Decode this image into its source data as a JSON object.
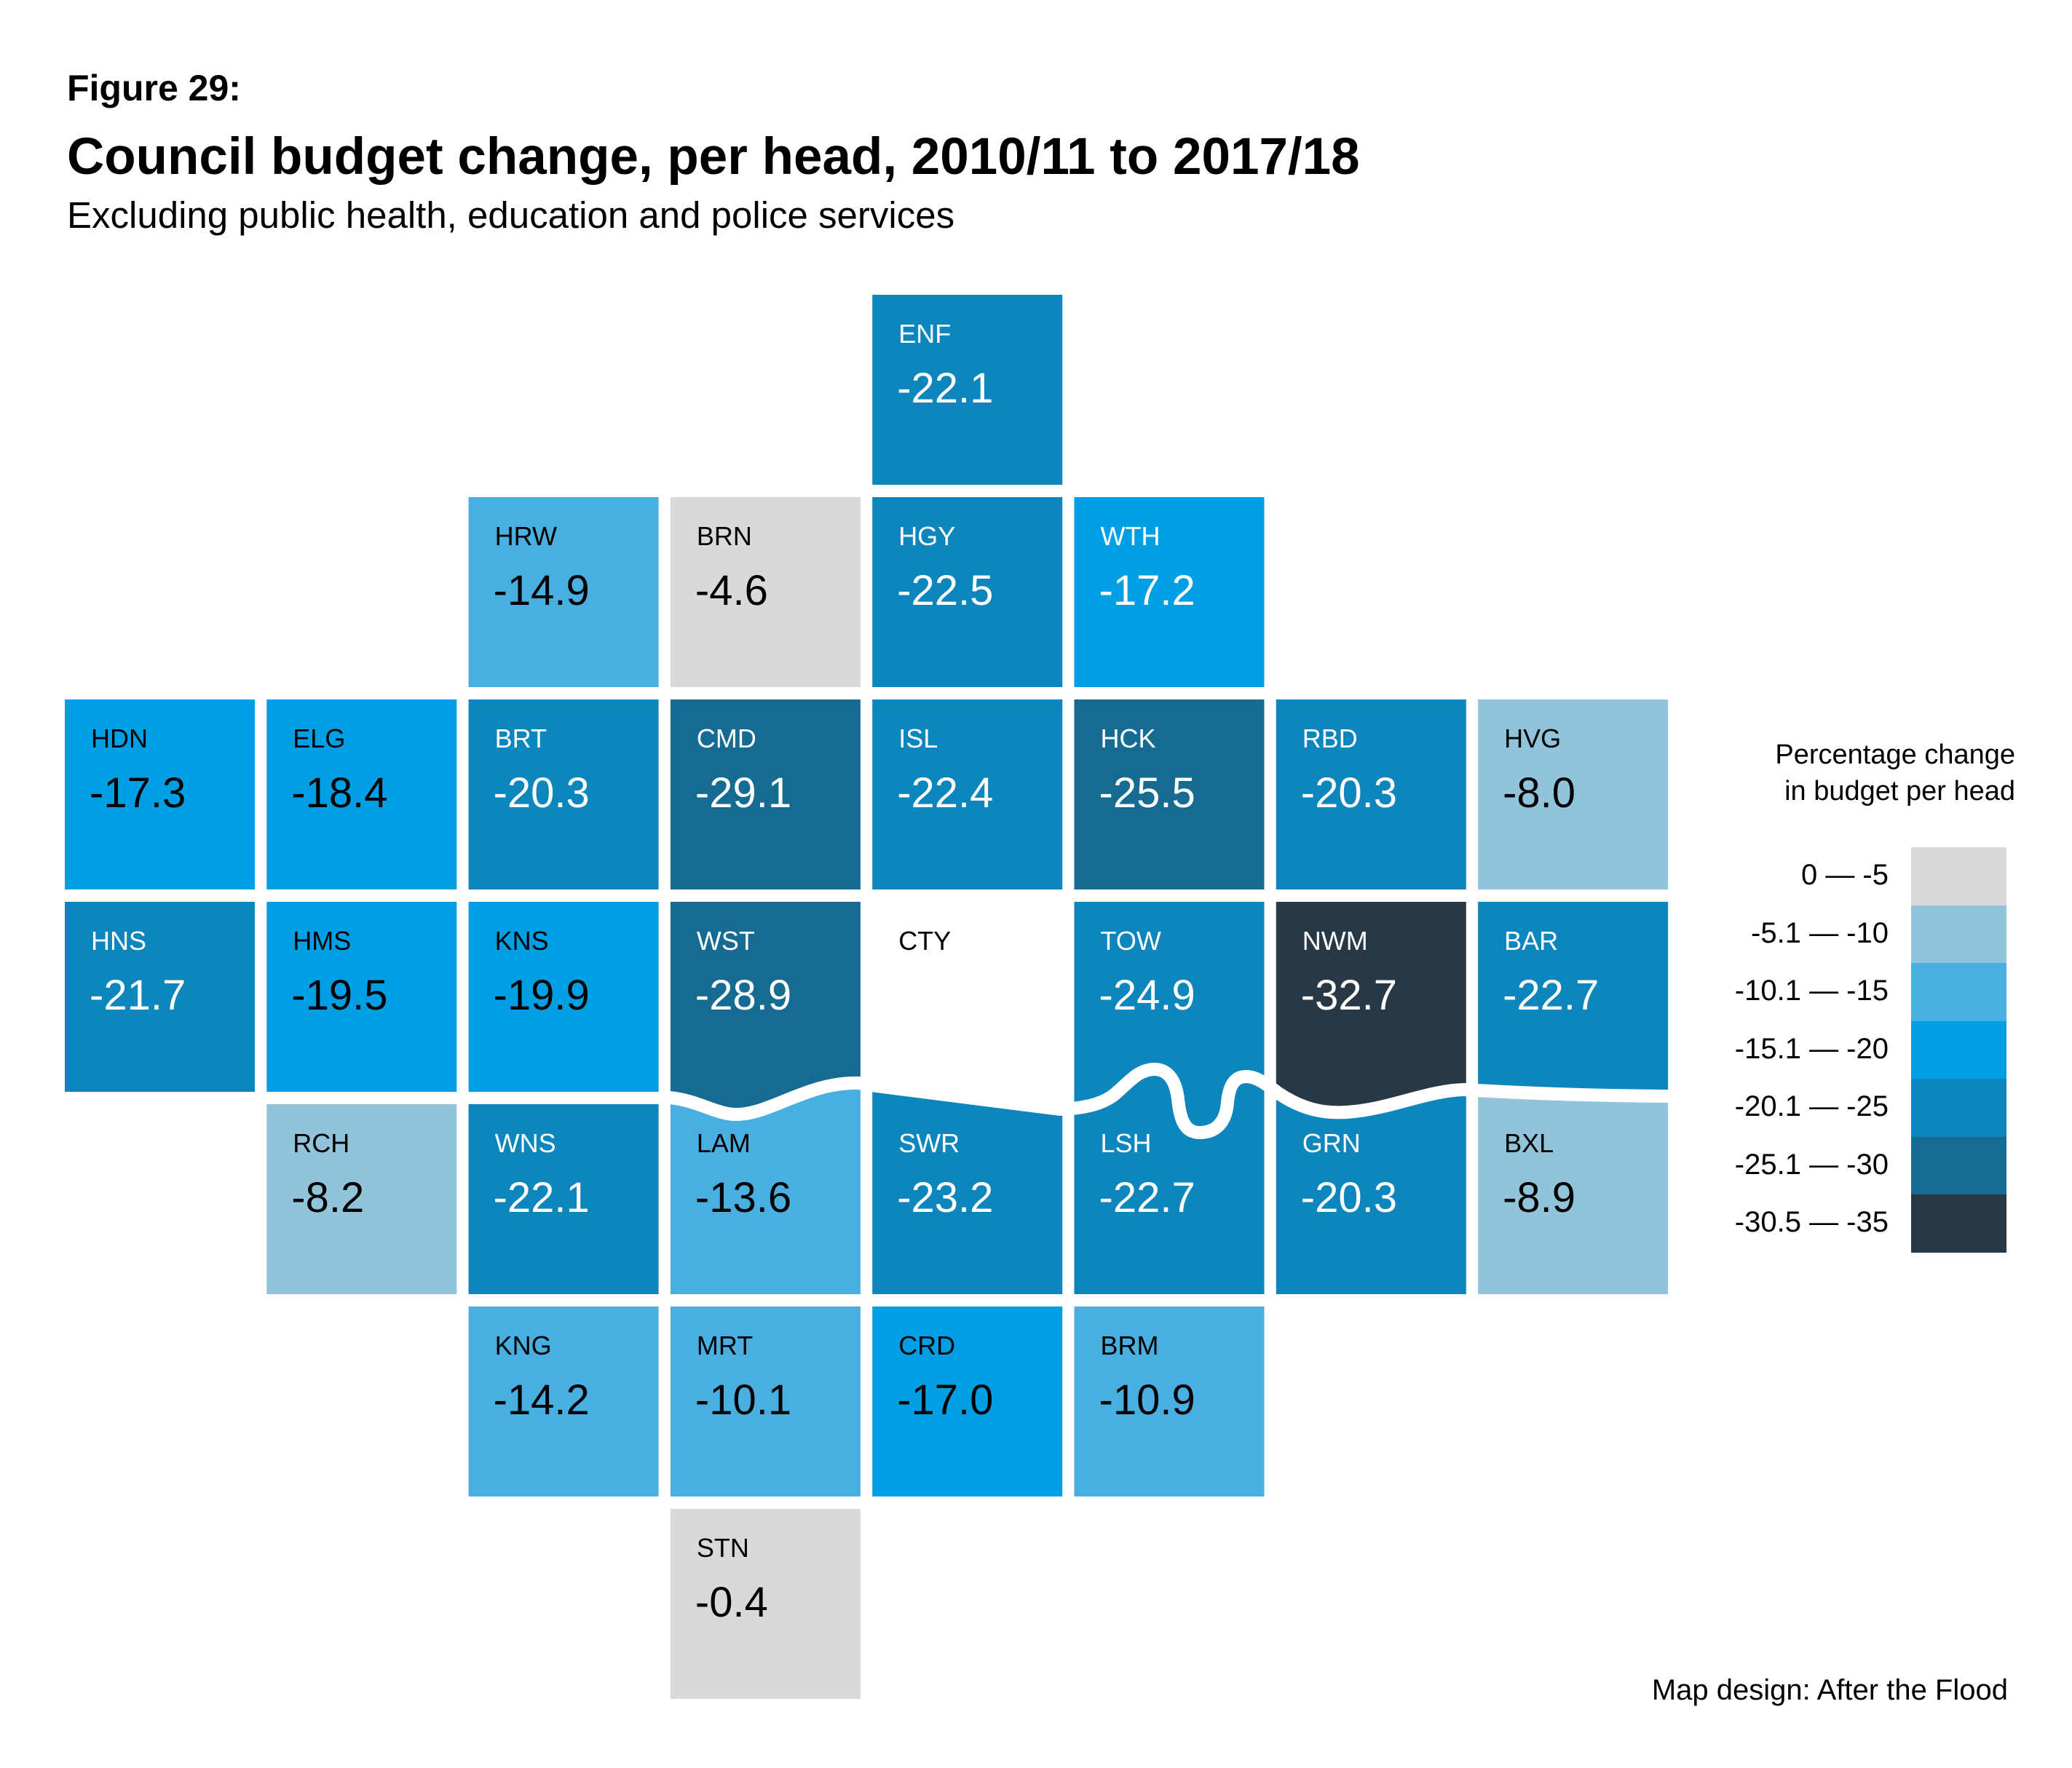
{
  "header": {
    "figure_label": "Figure 29:",
    "title": "Council budget change, per head, 2010/11 to 2017/18",
    "subtitle": "Excluding public health, education and police services"
  },
  "colors": {
    "band_0_5": "#d9d9d9",
    "band_5_10": "#91c3da",
    "band_10_15": "#49aee0",
    "band_15_20": "#009fe3",
    "band_20_25": "#0d85bd",
    "band_25_30": "#166b93",
    "band_30_35": "#283845",
    "river": "#ffffff",
    "text_dark": "#000000",
    "text_light": "#ffffff"
  },
  "legend": {
    "title_line1": "Percentage change",
    "title_line2": "in budget per head",
    "bands": [
      {
        "label": "0 — -5",
        "color": "#d9d9d9"
      },
      {
        "label": "-5.1 — -10",
        "color": "#91c3da"
      },
      {
        "label": "-10.1 — -15",
        "color": "#49aee0"
      },
      {
        "label": "-15.1 — -20",
        "color": "#009fe3"
      },
      {
        "label": "-20.1 — -25",
        "color": "#0d85bd"
      },
      {
        "label": "-25.1 — -30",
        "color": "#166b93"
      },
      {
        "label": "-30.5 — -35",
        "color": "#283845"
      }
    ]
  },
  "credit": "Map design: After the Flood",
  "chart_data": {
    "type": "heatmap",
    "title": "Council budget change, per head, 2010/11 to 2017/18",
    "subtitle": "Excluding public health, education and police services",
    "value_label": "Percentage change in budget per head",
    "legend_placement": "right",
    "grid_layout": "London borough tile map (column, row)",
    "tiles": [
      {
        "code": "ENF",
        "col": 4,
        "row": 0,
        "value": -22.1,
        "color": "#0d85bd",
        "text": "light"
      },
      {
        "code": "HRW",
        "col": 2,
        "row": 1,
        "value": -14.9,
        "color": "#49aee0",
        "text": "dark"
      },
      {
        "code": "BRN",
        "col": 3,
        "row": 1,
        "value": -4.6,
        "color": "#d9d9d9",
        "text": "dark"
      },
      {
        "code": "HGY",
        "col": 4,
        "row": 1,
        "value": -22.5,
        "color": "#0d85bd",
        "text": "light"
      },
      {
        "code": "WTH",
        "col": 5,
        "row": 1,
        "value": -17.2,
        "color": "#009fe3",
        "text": "light"
      },
      {
        "code": "HDN",
        "col": 0,
        "row": 2,
        "value": -17.3,
        "color": "#009fe3",
        "text": "dark"
      },
      {
        "code": "ELG",
        "col": 1,
        "row": 2,
        "value": -18.4,
        "color": "#009fe3",
        "text": "dark"
      },
      {
        "code": "BRT",
        "col": 2,
        "row": 2,
        "value": -20.3,
        "color": "#0d85bd",
        "text": "light"
      },
      {
        "code": "CMD",
        "col": 3,
        "row": 2,
        "value": -29.1,
        "color": "#166b93",
        "text": "light"
      },
      {
        "code": "ISL",
        "col": 4,
        "row": 2,
        "value": -22.4,
        "color": "#0d85bd",
        "text": "light"
      },
      {
        "code": "HCK",
        "col": 5,
        "row": 2,
        "value": -25.5,
        "color": "#166b93",
        "text": "light"
      },
      {
        "code": "RBD",
        "col": 6,
        "row": 2,
        "value": -20.3,
        "color": "#0d85bd",
        "text": "light"
      },
      {
        "code": "HVG",
        "col": 7,
        "row": 2,
        "value": -8.0,
        "color": "#91c3da",
        "text": "dark"
      },
      {
        "code": "HNS",
        "col": 0,
        "row": 3,
        "value": -21.7,
        "color": "#0d85bd",
        "text": "light"
      },
      {
        "code": "HMS",
        "col": 1,
        "row": 3,
        "value": -19.5,
        "color": "#009fe3",
        "text": "dark"
      },
      {
        "code": "KNS",
        "col": 2,
        "row": 3,
        "value": -19.9,
        "color": "#009fe3",
        "text": "dark"
      },
      {
        "code": "WST",
        "col": 3,
        "row": 3,
        "value": -28.9,
        "color": "#166b93",
        "text": "light"
      },
      {
        "code": "CTY",
        "col": 4,
        "row": 3,
        "value": null,
        "color": "#ffffff",
        "text": "dark"
      },
      {
        "code": "TOW",
        "col": 5,
        "row": 3,
        "value": -24.9,
        "color": "#0d85bd",
        "text": "light"
      },
      {
        "code": "NWM",
        "col": 6,
        "row": 3,
        "value": -32.7,
        "color": "#283845",
        "text": "light"
      },
      {
        "code": "BAR",
        "col": 7,
        "row": 3,
        "value": -22.7,
        "color": "#0d85bd",
        "text": "light"
      },
      {
        "code": "RCH",
        "col": 1,
        "row": 4,
        "value": -8.2,
        "color": "#91c3da",
        "text": "dark"
      },
      {
        "code": "WNS",
        "col": 2,
        "row": 4,
        "value": -22.1,
        "color": "#0d85bd",
        "text": "light"
      },
      {
        "code": "LAM",
        "col": 3,
        "row": 4,
        "value": -13.6,
        "color": "#49aee0",
        "text": "dark"
      },
      {
        "code": "SWR",
        "col": 4,
        "row": 4,
        "value": -23.2,
        "color": "#0d85bd",
        "text": "light"
      },
      {
        "code": "LSH",
        "col": 5,
        "row": 4,
        "value": -22.7,
        "color": "#0d85bd",
        "text": "light"
      },
      {
        "code": "GRN",
        "col": 6,
        "row": 4,
        "value": -20.3,
        "color": "#0d85bd",
        "text": "light"
      },
      {
        "code": "BXL",
        "col": 7,
        "row": 4,
        "value": -8.9,
        "color": "#91c3da",
        "text": "dark"
      },
      {
        "code": "KNG",
        "col": 2,
        "row": 5,
        "value": -14.2,
        "color": "#49aee0",
        "text": "dark"
      },
      {
        "code": "MRT",
        "col": 3,
        "row": 5,
        "value": -10.1,
        "color": "#49aee0",
        "text": "dark"
      },
      {
        "code": "CRD",
        "col": 4,
        "row": 5,
        "value": -17.0,
        "color": "#009fe3",
        "text": "dark"
      },
      {
        "code": "BRM",
        "col": 5,
        "row": 5,
        "value": -10.9,
        "color": "#49aee0",
        "text": "dark"
      },
      {
        "code": "STN",
        "col": 3,
        "row": 6,
        "value": -0.4,
        "color": "#d9d9d9",
        "text": "dark"
      }
    ],
    "value_format": "one decimal, negative"
  }
}
